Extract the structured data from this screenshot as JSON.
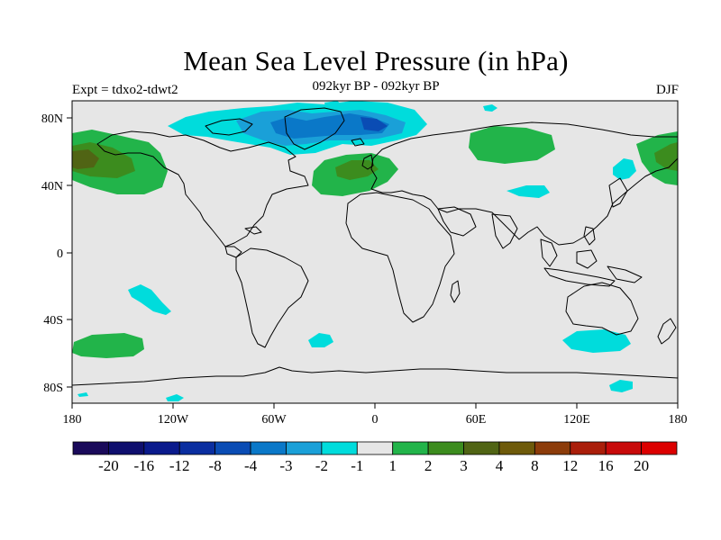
{
  "header": {
    "title": "Mean Sea Level Pressure (in hPa)",
    "subtitle": "092kyr BP - 092kyr BP",
    "left_label": "Expt = tdxo2-tdwt2",
    "right_label": "DJF"
  },
  "map": {
    "projection": "cylindrical-equidistant",
    "background_color": "#e6e6e6",
    "coastline_color": "#000000",
    "lat_labels": [
      "80N",
      "40N",
      "0",
      "40S",
      "80S"
    ],
    "lon_labels": [
      "180",
      "120W",
      "60W",
      "0",
      "60E",
      "120E",
      "180"
    ]
  },
  "colorbar": {
    "colors": [
      "#1a0a5a",
      "#0f0f6e",
      "#0a1a8c",
      "#0a2ea0",
      "#0a4cb4",
      "#0a78c8",
      "#1aa0d8",
      "#00dcdc",
      "#e6e6e6",
      "#22b44a",
      "#3c8c1e",
      "#506414",
      "#6e5a0a",
      "#8c3c0a",
      "#aa1e0a",
      "#c80a0a",
      "#dc0000"
    ],
    "labels": [
      "-20",
      "-16",
      "-12",
      "-8",
      "-4",
      "-3",
      "-2",
      "-1",
      "1",
      "2",
      "3",
      "4",
      "8",
      "12",
      "16",
      "20"
    ]
  },
  "anomaly_regions": [
    {
      "name": "north-pacific-positive",
      "level": "2 to 3"
    },
    {
      "name": "east-atlantic-positive",
      "level": "2 to 3"
    },
    {
      "name": "greenland-negative",
      "level": "-4 to -1"
    },
    {
      "name": "siberia-positive",
      "level": "2"
    },
    {
      "name": "south-pacific-positive",
      "level": "2"
    }
  ]
}
